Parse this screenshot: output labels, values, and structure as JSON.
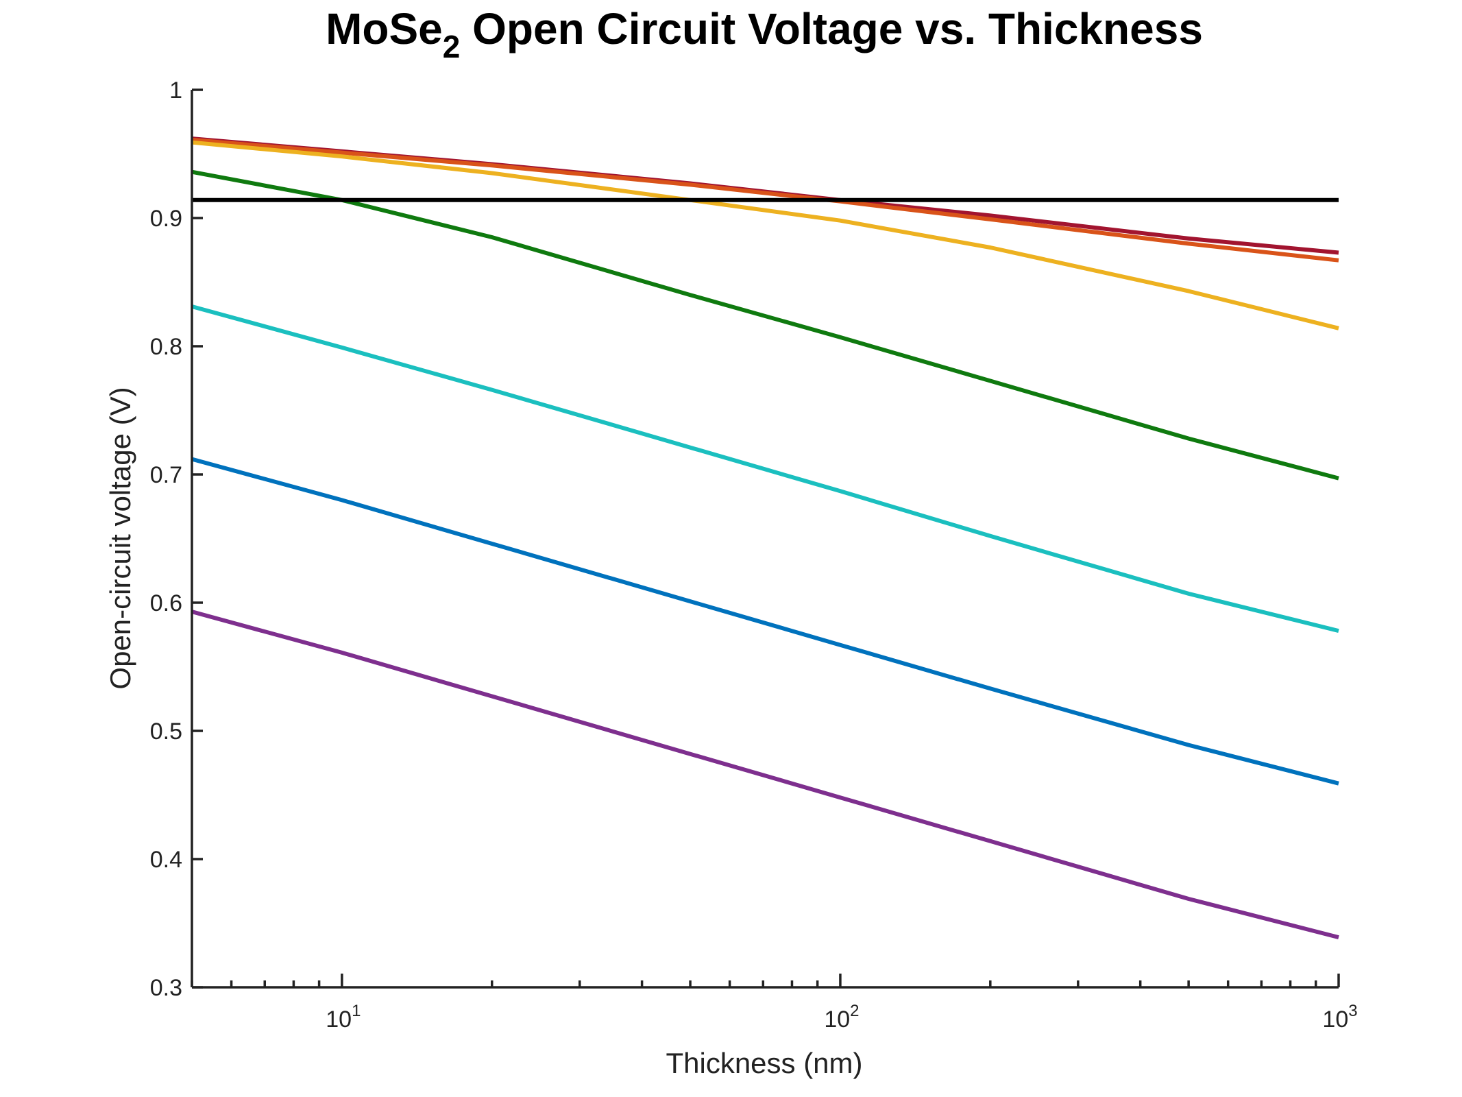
{
  "chart_data": {
    "type": "line",
    "title_main": "MoSe",
    "title_subscript": "2",
    "title_rest": " Open Circuit Voltage vs. Thickness",
    "xlabel": "Thickness (nm)",
    "ylabel": "Open-circuit voltage (V)",
    "xscale": "log",
    "xlim": [
      5,
      1000
    ],
    "ylim": [
      0.3,
      1.0
    ],
    "xticks": [
      {
        "base": "10",
        "exp": "1",
        "value": 10
      },
      {
        "base": "10",
        "exp": "2",
        "value": 100
      },
      {
        "base": "10",
        "exp": "3",
        "value": 1000
      }
    ],
    "yticks": [
      "0.3",
      "0.4",
      "0.5",
      "0.6",
      "0.7",
      "0.8",
      "0.9",
      "1"
    ],
    "grid": false,
    "legend": "none",
    "x": [
      5,
      10,
      20,
      50,
      100,
      200,
      500,
      1000
    ],
    "series": [
      {
        "color": "#A2142F",
        "values": [
          0.962,
          0.952,
          0.942,
          0.927,
          0.914,
          0.902,
          0.884,
          0.873
        ]
      },
      {
        "color": "#D95319",
        "values": [
          0.961,
          0.951,
          0.941,
          0.926,
          0.913,
          0.899,
          0.88,
          0.867
        ]
      },
      {
        "color": "#EDB120",
        "values": [
          0.959,
          0.948,
          0.935,
          0.914,
          0.898,
          0.877,
          0.843,
          0.814
        ]
      },
      {
        "color": "#0F7A0F",
        "values": [
          0.936,
          0.914,
          0.885,
          0.84,
          0.807,
          0.773,
          0.728,
          0.697
        ]
      },
      {
        "color": "#1BBFBF",
        "values": [
          0.831,
          0.799,
          0.766,
          0.721,
          0.687,
          0.652,
          0.607,
          0.578
        ]
      },
      {
        "color": "#0072BD",
        "values": [
          0.712,
          0.68,
          0.646,
          0.601,
          0.567,
          0.533,
          0.489,
          0.459
        ]
      },
      {
        "color": "#7E2F8E",
        "values": [
          0.593,
          0.561,
          0.527,
          0.482,
          0.448,
          0.414,
          0.369,
          0.339
        ]
      },
      {
        "color": "#000000",
        "values": [
          0.914,
          0.914,
          0.914,
          0.914,
          0.914,
          0.914,
          0.914,
          0.914
        ]
      }
    ]
  }
}
